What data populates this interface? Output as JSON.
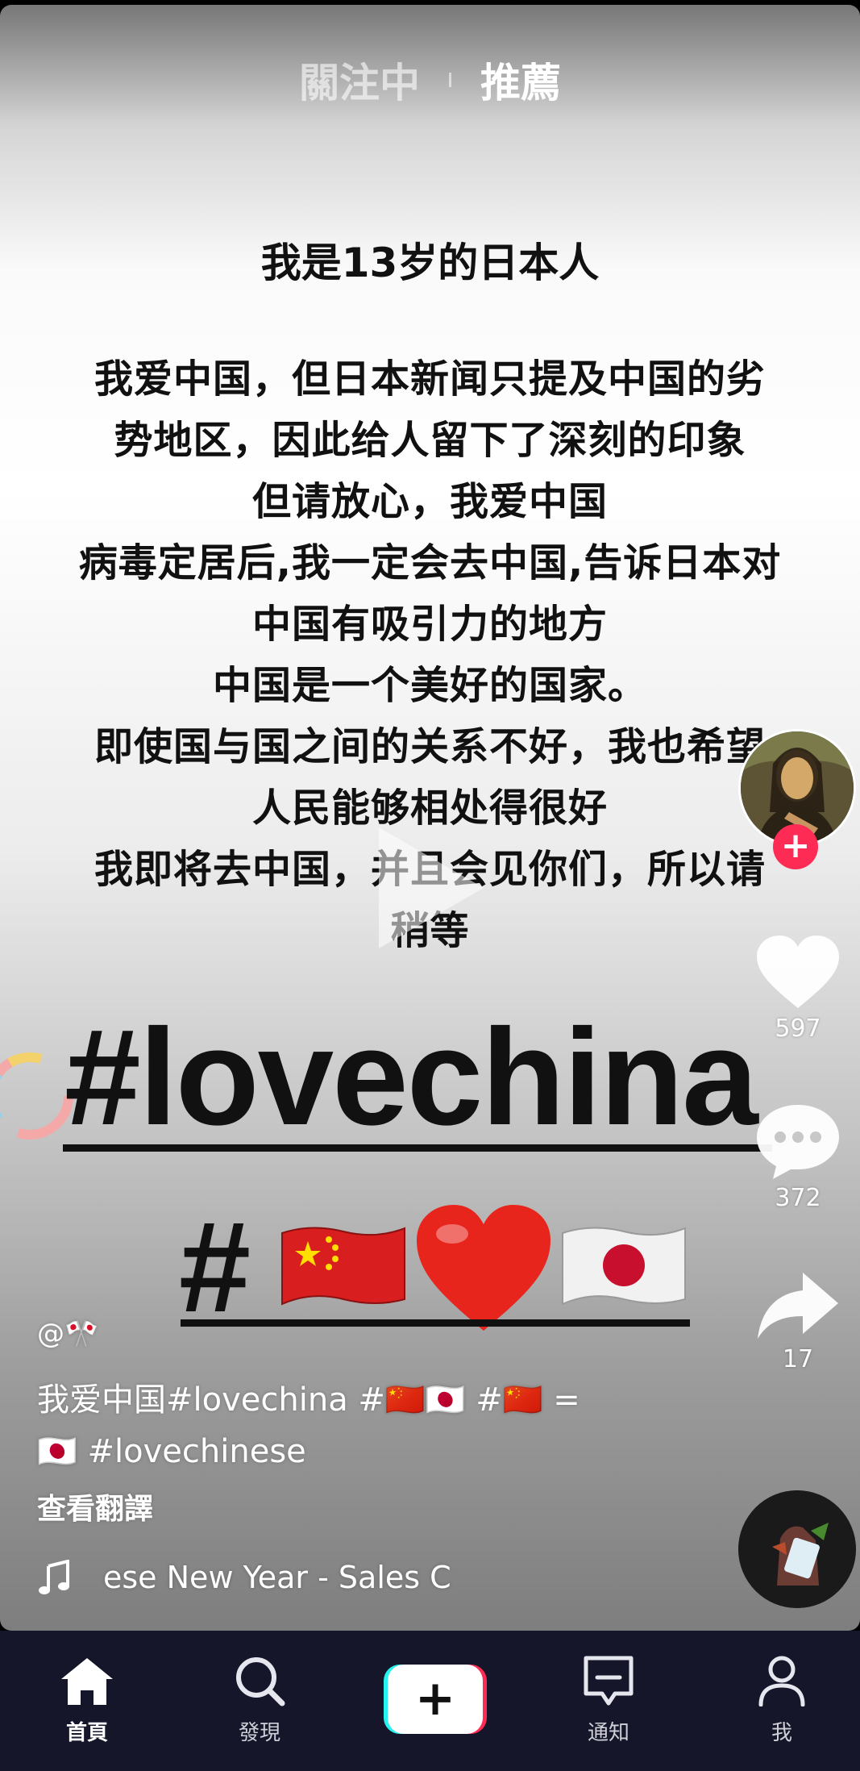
{
  "top_tabs": {
    "following": "關注中",
    "for_you": "推薦"
  },
  "overlay_text": {
    "headline": "我是13岁的日本人",
    "lines": [
      "我爱中国，但日本新闻只提及中国的劣",
      "势地区，因此给人留下了深刻的印象",
      "但请放心，我爱中国",
      "病毒定居后,我一定会去中国,告诉日本对",
      "中国有吸引力的地方",
      "中国是一个美好的国家。",
      "即使国与国之间的关系不好，我也希望",
      "人民能够相处得很好",
      "我即将去中国，并且会见你们，所以请",
      "稍等"
    ],
    "hashtag_big": "#lovechina",
    "hash_symbol": "#"
  },
  "actions": {
    "likes": "597",
    "comments": "372",
    "shares": "17",
    "follow_symbol": "+"
  },
  "post": {
    "username": "@🎌",
    "description_line1": "我爱中国#lovechina #🇨🇳🇯🇵 #🇨🇳 =",
    "description_line2": "🇯🇵 #lovechinese",
    "see_translation": "查看翻譯",
    "music": "ese New Year - Sales    C"
  },
  "bottom_nav": {
    "home": "首頁",
    "discover": "發現",
    "create_symbol": "+",
    "inbox": "通知",
    "me": "我"
  },
  "colors": {
    "accent": "#fe2c55",
    "cyan": "#25f4ee",
    "nav_bg": "#15162a"
  },
  "icons": [
    "heart-icon",
    "comment-icon",
    "share-icon",
    "music-note-icon",
    "home-icon",
    "search-icon",
    "inbox-icon",
    "profile-icon"
  ]
}
